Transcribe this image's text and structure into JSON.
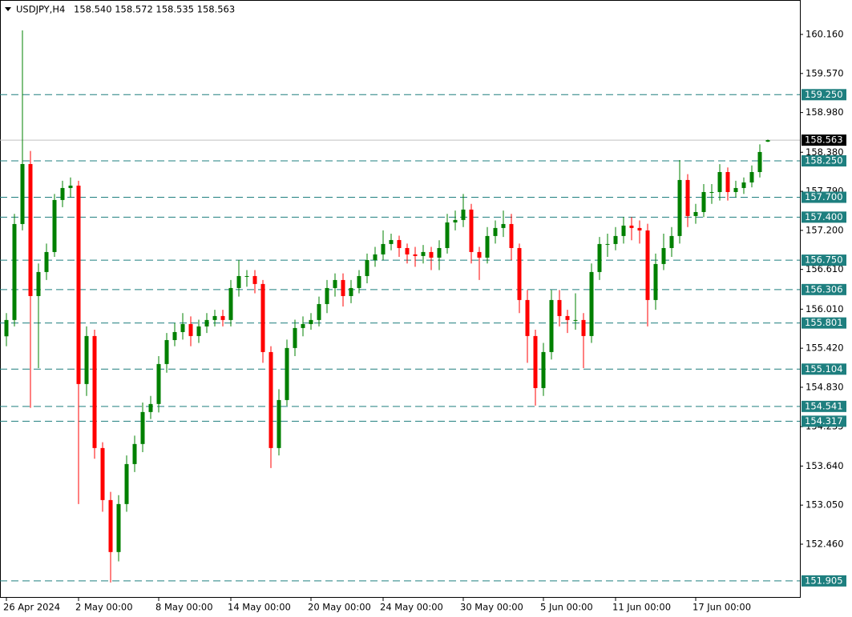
{
  "header": {
    "symbol": "USDJPY,H4",
    "prices": "158.540 158.572 158.535 158.563"
  },
  "chart_data": {
    "type": "candlestick",
    "categories": [
      "26 Apr 2024",
      null,
      null,
      null,
      null,
      null,
      null,
      null,
      null,
      "2 May 00:00",
      null,
      null,
      null,
      null,
      null,
      null,
      null,
      null,
      null,
      "8 May 00:00",
      null,
      null,
      null,
      null,
      null,
      null,
      null,
      null,
      "14 May 00:00",
      null,
      null,
      null,
      null,
      null,
      null,
      null,
      null,
      null,
      "20 May 00:00",
      null,
      null,
      null,
      null,
      null,
      null,
      null,
      null,
      "24 May 00:00",
      null,
      null,
      null,
      null,
      null,
      null,
      null,
      null,
      null,
      "30 May 00:00",
      null,
      null,
      null,
      null,
      null,
      null,
      null,
      null,
      null,
      "5 Jun 00:00",
      null,
      null,
      null,
      null,
      null,
      null,
      null,
      null,
      "11 Jun 00:00",
      null,
      null,
      null,
      null,
      null,
      null,
      null,
      null,
      null,
      "17 Jun 00:00",
      null,
      null,
      null,
      null,
      null,
      null,
      null,
      null,
      null
    ],
    "open": [
      155.6,
      155.846,
      157.296,
      158.202,
      156.208,
      156.571,
      156.873,
      157.659,
      157.84,
      157.876,
      154.879,
      155.604,
      153.912,
      153.126,
      152.341,
      153.066,
      153.67,
      153.973,
      154.456,
      154.577,
      155.181,
      155.543,
      155.664,
      155.785,
      155.604,
      155.749,
      155.846,
      155.906,
      155.846,
      156.329,
      156.51,
      156.51,
      156.39,
      155.362,
      153.912,
      154.637,
      155.423,
      155.725,
      155.785,
      155.846,
      156.087,
      156.329,
      156.45,
      156.208,
      156.329,
      156.51,
      156.752,
      156.837,
      156.994,
      157.054,
      156.933,
      156.837,
      156.813,
      156.873,
      156.788,
      156.933,
      157.32,
      157.357,
      157.514,
      156.873,
      156.788,
      157.115,
      157.236,
      157.296,
      156.933,
      156.148,
      155.604,
      154.818,
      155.362,
      156.148,
      155.906,
      155.846,
      155.846,
      155.604,
      156.571,
      156.994,
      156.994,
      157.115,
      157.272,
      157.236,
      157.199,
      156.148,
      156.692,
      156.933,
      157.115,
      157.961,
      157.417,
      157.477,
      157.779,
      157.779,
      158.081,
      157.779,
      157.84,
      157.924,
      158.081,
      158.54
    ],
    "high": [
      155.95,
      157.45,
      160.22,
      158.4,
      156.7,
      157.0,
      157.75,
      157.95,
      158.0,
      157.95,
      155.75,
      155.7,
      154.0,
      153.25,
      153.2,
      153.8,
      154.1,
      154.6,
      154.7,
      155.3,
      155.65,
      155.8,
      155.95,
      155.9,
      155.85,
      155.95,
      156.0,
      156.0,
      156.45,
      156.75,
      156.6,
      156.6,
      156.45,
      155.45,
      154.8,
      155.55,
      155.85,
      155.9,
      155.95,
      156.2,
      156.45,
      156.55,
      156.55,
      156.45,
      156.6,
      156.85,
      156.95,
      157.2,
      157.15,
      157.12,
      157.0,
      156.95,
      156.98,
      156.95,
      157.05,
      157.45,
      157.5,
      157.75,
      157.6,
      156.95,
      157.25,
      157.35,
      157.5,
      157.45,
      157.0,
      156.3,
      155.7,
      155.5,
      156.3,
      156.3,
      156.0,
      156.25,
      155.95,
      156.7,
      157.1,
      157.15,
      157.25,
      157.4,
      157.4,
      157.35,
      157.3,
      156.85,
      157.15,
      157.25,
      158.263,
      158.05,
      157.6,
      157.9,
      157.9,
      158.2,
      158.15,
      157.95,
      158.0,
      158.18,
      158.5,
      158.572
    ],
    "low": [
      155.45,
      155.75,
      157.2,
      154.52,
      155.12,
      156.45,
      156.8,
      157.55,
      157.7,
      153.066,
      154.7,
      153.75,
      152.95,
      151.881,
      152.2,
      152.95,
      153.55,
      153.85,
      154.35,
      154.45,
      155.05,
      155.45,
      155.55,
      155.45,
      155.5,
      155.65,
      155.75,
      155.75,
      155.75,
      156.2,
      156.35,
      156.25,
      155.2,
      153.61,
      153.8,
      154.55,
      155.3,
      155.6,
      155.7,
      155.75,
      155.95,
      156.2,
      156.05,
      156.1,
      156.25,
      156.4,
      156.65,
      156.75,
      156.9,
      156.8,
      156.7,
      156.65,
      156.7,
      156.6,
      156.6,
      156.85,
      157.2,
      157.25,
      156.7,
      156.45,
      156.7,
      157.0,
      157.1,
      156.75,
      155.95,
      155.2,
      154.552,
      154.7,
      155.25,
      155.75,
      155.65,
      155.7,
      155.12,
      155.5,
      156.45,
      156.8,
      156.9,
      157.0,
      157.05,
      157.0,
      155.749,
      156.0,
      156.6,
      156.8,
      157.0,
      157.25,
      157.3,
      157.4,
      157.6,
      157.65,
      157.65,
      157.7,
      157.75,
      157.85,
      158.0,
      158.535
    ],
    "close": [
      155.846,
      157.296,
      158.202,
      156.208,
      156.571,
      156.873,
      157.659,
      157.84,
      157.876,
      154.879,
      155.604,
      153.912,
      153.126,
      152.341,
      153.066,
      153.67,
      153.973,
      154.456,
      154.577,
      155.181,
      155.543,
      155.664,
      155.785,
      155.604,
      155.749,
      155.846,
      155.906,
      155.846,
      156.329,
      156.51,
      156.51,
      156.39,
      155.362,
      153.912,
      154.637,
      155.423,
      155.725,
      155.785,
      155.846,
      156.087,
      156.329,
      156.45,
      156.208,
      156.329,
      156.51,
      156.752,
      156.837,
      156.994,
      157.054,
      156.933,
      156.837,
      156.813,
      156.873,
      156.788,
      156.933,
      157.32,
      157.357,
      157.514,
      156.873,
      156.788,
      157.115,
      157.236,
      157.296,
      156.933,
      156.148,
      155.604,
      154.818,
      155.362,
      156.148,
      155.906,
      155.846,
      155.846,
      155.604,
      156.571,
      156.994,
      156.994,
      157.115,
      157.272,
      157.236,
      157.199,
      156.148,
      156.692,
      156.933,
      157.115,
      157.961,
      157.417,
      157.477,
      157.779,
      157.779,
      158.081,
      157.779,
      157.84,
      157.924,
      158.081,
      158.384,
      158.563
    ],
    "up_color": "#008000",
    "down_color": "#ff0000",
    "ylim": [
      151.65,
      160.68
    ],
    "yticks": [
      {
        "value": 160.16,
        "label": "160.160"
      },
      {
        "value": 159.57,
        "label": "159.570"
      },
      {
        "value": 158.98,
        "label": "158.980"
      },
      {
        "value": 158.38,
        "label": "158.380"
      },
      {
        "value": 157.79,
        "label": "157.790"
      },
      {
        "value": 157.2,
        "label": "157.200"
      },
      {
        "value": 156.61,
        "label": "156.610"
      },
      {
        "value": 156.01,
        "label": "156.010"
      },
      {
        "value": 155.42,
        "label": "155.420"
      },
      {
        "value": 154.83,
        "label": "154.830"
      },
      {
        "value": 154.235,
        "label": "154.235"
      },
      {
        "value": 153.64,
        "label": "153.640"
      },
      {
        "value": 153.05,
        "label": "153.050"
      },
      {
        "value": 152.46,
        "label": "152.460"
      }
    ],
    "levels": [
      {
        "value": 159.25,
        "label": "159.250"
      },
      {
        "value": 158.25,
        "label": "158.250"
      },
      {
        "value": 157.7,
        "label": "157.700"
      },
      {
        "value": 157.4,
        "label": "157.400"
      },
      {
        "value": 156.75,
        "label": "156.750"
      },
      {
        "value": 156.306,
        "label": "156.306"
      },
      {
        "value": 155.801,
        "label": "155.801"
      },
      {
        "value": 155.104,
        "label": "155.104"
      },
      {
        "value": 154.541,
        "label": "154.541"
      },
      {
        "value": 154.317,
        "label": "154.317"
      },
      {
        "value": 151.905,
        "label": "151.905"
      }
    ],
    "level_color": "#1e7f7f",
    "current_price": 158.563
  }
}
